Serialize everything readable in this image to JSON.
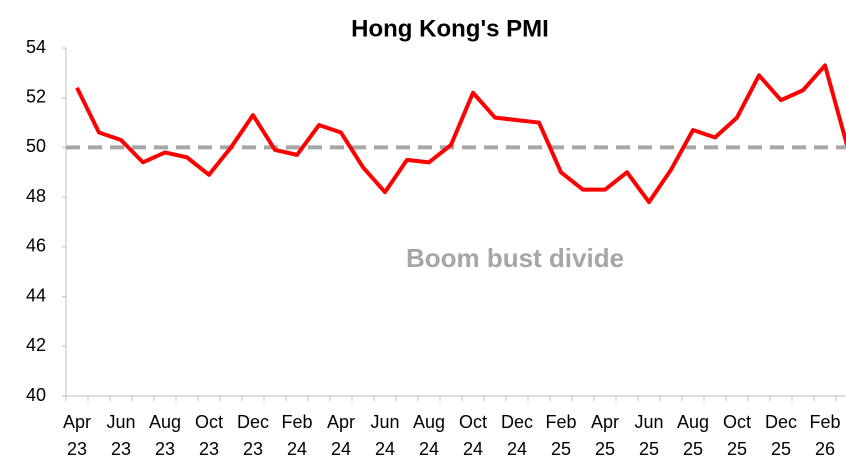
{
  "chart_data": {
    "type": "line",
    "title": "Hong Kong's PMI",
    "categories": [
      "Apr 23",
      null,
      "Jun 23",
      null,
      "Aug 23",
      null,
      "Oct 23",
      null,
      "Dec 23",
      null,
      "Feb 24",
      null,
      "Apr 24",
      null,
      "Jun 24",
      null,
      "Aug 24",
      null,
      "Oct 24",
      null,
      "Dec 24",
      null,
      "Feb 25",
      null,
      "Apr 25",
      null,
      "Jun 25",
      null,
      "Aug 25",
      null,
      "Oct 25",
      null,
      "Dec 25",
      null,
      "Feb 26",
      null
    ],
    "series": [
      {
        "name": "PMI",
        "color": "#ff0000",
        "values": [
          52.4,
          50.6,
          50.3,
          49.4,
          49.8,
          49.6,
          48.9,
          50.0,
          51.3,
          49.9,
          49.7,
          50.9,
          50.6,
          49.2,
          48.2,
          49.5,
          49.4,
          50.1,
          52.2,
          51.2,
          51.1,
          51.0,
          49.0,
          48.3,
          48.3,
          49.0,
          47.8,
          49.1,
          50.7,
          50.4,
          51.2,
          52.9,
          51.9,
          52.3,
          53.3,
          50.1
        ]
      }
    ],
    "ylim": [
      40,
      54
    ],
    "yticks": [
      40,
      42,
      44,
      46,
      48,
      50,
      52,
      54
    ],
    "reference_line": {
      "value": 50,
      "color": "#a6a6a6",
      "label": "Boom bust divide"
    }
  }
}
